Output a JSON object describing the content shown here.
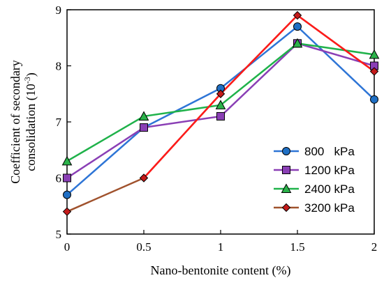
{
  "chart_data": {
    "type": "line",
    "xlabel": "Nano-bentonite content (%)",
    "ylabel_line1": "Coefficient of secondary",
    "ylabel_line2": "consolidation (10",
    "ylabel_sup": "-3",
    "ylabel_close": ")",
    "xlim": [
      0,
      2
    ],
    "ylim": [
      5,
      9
    ],
    "x_ticks": [
      "0",
      "0.5",
      "1",
      "1.5",
      "2"
    ],
    "y_ticks": [
      "5",
      "6",
      "7",
      "8",
      "9"
    ],
    "x": [
      0,
      0.5,
      1,
      1.5,
      2
    ],
    "grid": false,
    "legend_position": "bottom-right",
    "series": [
      {
        "name": "800   kPa",
        "marker": "circle",
        "line_color": "#2e75d6",
        "marker_color": "#1f6fc4",
        "values": [
          5.7,
          6.9,
          7.6,
          8.7,
          7.4
        ]
      },
      {
        "name": "1200 kPa",
        "marker": "square",
        "line_color": "#8a3fb5",
        "marker_color": "#8a3fb5",
        "values": [
          6.0,
          6.9,
          7.1,
          8.4,
          8.0
        ]
      },
      {
        "name": "2400 kPa",
        "marker": "triangle",
        "line_color": "#1fb24a",
        "marker_color": "#2bb24a",
        "values": [
          6.3,
          7.1,
          7.3,
          8.4,
          8.2
        ]
      },
      {
        "name": "3200 kPa",
        "marker": "diamond",
        "line_color": "#a0522d",
        "marker_color": "#c41a1a",
        "values": [
          5.4,
          6.0,
          7.5,
          8.9,
          7.9
        ]
      }
    ],
    "overlay_line": {
      "color": "#ff1a1a",
      "x": [
        0.5,
        1,
        1.5,
        2
      ],
      "values": [
        6.0,
        7.5,
        8.9,
        7.9
      ]
    }
  }
}
